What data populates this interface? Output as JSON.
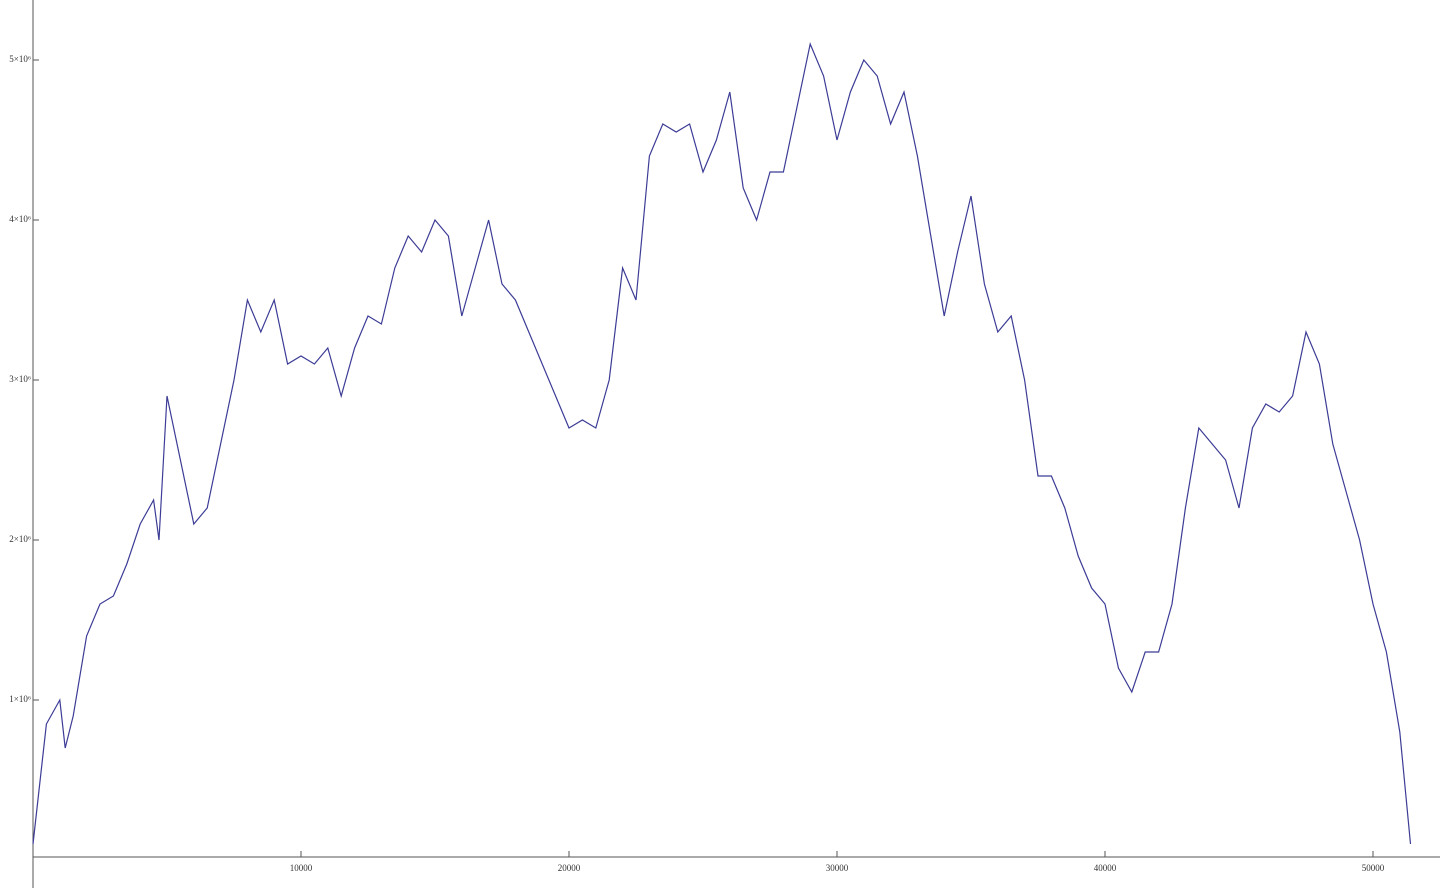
{
  "chart_data": {
    "type": "line",
    "color": "#3c3c96",
    "x": [
      0,
      500,
      1000,
      1200,
      1500,
      2000,
      2500,
      3000,
      3500,
      4000,
      4500,
      4700,
      5000,
      5500,
      6000,
      6500,
      7000,
      7500,
      8000,
      8500,
      9000,
      9500,
      10000,
      10500,
      11000,
      11500,
      12000,
      12500,
      13000,
      13500,
      14000,
      14500,
      15000,
      15500,
      16000,
      16500,
      17000,
      17500,
      18000,
      18500,
      19000,
      19500,
      20000,
      20500,
      21000,
      21500,
      22000,
      22500,
      23000,
      23500,
      24000,
      24500,
      25000,
      25500,
      26000,
      26500,
      27000,
      27500,
      28000,
      28500,
      29000,
      29500,
      30000,
      30500,
      31000,
      31500,
      32000,
      32500,
      33000,
      33500,
      34000,
      34500,
      35000,
      35500,
      36000,
      36500,
      37000,
      37500,
      38000,
      38500,
      39000,
      39500,
      40000,
      40500,
      41000,
      41500,
      42000,
      42500,
      43000,
      43500,
      44000,
      44500,
      45000,
      45500,
      46000,
      46500,
      47000,
      47500,
      48000,
      48500,
      49000,
      49500,
      50000,
      50500,
      51000,
      51400
    ],
    "values": [
      100000,
      850000,
      1000000,
      700000,
      900000,
      1400000,
      1600000,
      1650000,
      1850000,
      2100000,
      2250000,
      2000000,
      2900000,
      2500000,
      2100000,
      2200000,
      2600000,
      3000000,
      3500000,
      3300000,
      3500000,
      3100000,
      3150000,
      3100000,
      3200000,
      2900000,
      3200000,
      3400000,
      3350000,
      3700000,
      3900000,
      3800000,
      4000000,
      3900000,
      3400000,
      3700000,
      4000000,
      3600000,
      3500000,
      3300000,
      3100000,
      2900000,
      2700000,
      2750000,
      2700000,
      3000000,
      3700000,
      3500000,
      4400000,
      4600000,
      4550000,
      4600000,
      4300000,
      4500000,
      4800000,
      4200000,
      4000000,
      4300000,
      4300000,
      4700000,
      5100000,
      4900000,
      4500000,
      4800000,
      5000000,
      4900000,
      4600000,
      4800000,
      4400000,
      3900000,
      3400000,
      3800000,
      4150000,
      3600000,
      3300000,
      3400000,
      3000000,
      2400000,
      2400000,
      2200000,
      1900000,
      1700000,
      1600000,
      1200000,
      1050000,
      1300000,
      1300000,
      1600000,
      2200000,
      2700000,
      2600000,
      2500000,
      2200000,
      2700000,
      2850000,
      2800000,
      2900000,
      3300000,
      3100000,
      2600000,
      2300000,
      2000000,
      1600000,
      1300000,
      800000,
      100000
    ],
    "xlim": [
      0,
      52500
    ],
    "ylim": [
      0,
      5375000
    ],
    "xticks": [
      10000,
      20000,
      30000,
      40000,
      50000
    ],
    "yticks": [
      {
        "value": 1000000,
        "label": "1×10⁶"
      },
      {
        "value": 2000000,
        "label": "2×10⁶"
      },
      {
        "value": 3000000,
        "label": "3×10⁶"
      },
      {
        "value": 4000000,
        "label": "4×10⁶"
      },
      {
        "value": 5000000,
        "label": "5×10⁶"
      }
    ]
  }
}
